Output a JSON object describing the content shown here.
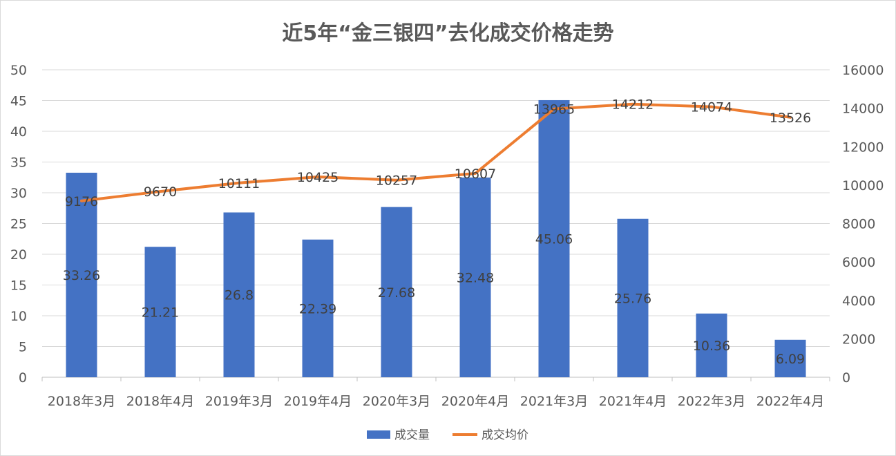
{
  "chart_data": {
    "type": "bar+line",
    "title": "近5年“金三银四”去化成交价格走势",
    "categories": [
      "2018年3月",
      "2018年4月",
      "2019年3月",
      "2019年4月",
      "2020年3月",
      "2020年4月",
      "2021年3月",
      "2021年4月",
      "2022年3月",
      "2022年4月"
    ],
    "series": [
      {
        "name": "成交量",
        "type": "bar",
        "axis": "left",
        "color": "#4472C4",
        "values": [
          33.26,
          21.21,
          26.8,
          22.39,
          27.68,
          32.48,
          45.06,
          25.76,
          10.36,
          6.09
        ]
      },
      {
        "name": "成交均价",
        "type": "line",
        "axis": "right",
        "color": "#ED7D31",
        "values": [
          9176,
          9670,
          10111,
          10425,
          10257,
          10607,
          13965,
          14212,
          14074,
          13526
        ]
      }
    ],
    "y_left": {
      "min": 0,
      "max": 50,
      "step": 5,
      "ticks": [
        "0",
        "5",
        "10",
        "15",
        "20",
        "25",
        "30",
        "35",
        "40",
        "45",
        "50"
      ]
    },
    "y_right": {
      "min": 0,
      "max": 16000,
      "step": 2000,
      "ticks": [
        "0",
        "2000",
        "4000",
        "6000",
        "8000",
        "10000",
        "12000",
        "14000",
        "16000"
      ]
    },
    "grid": true,
    "legend": "bottom"
  }
}
